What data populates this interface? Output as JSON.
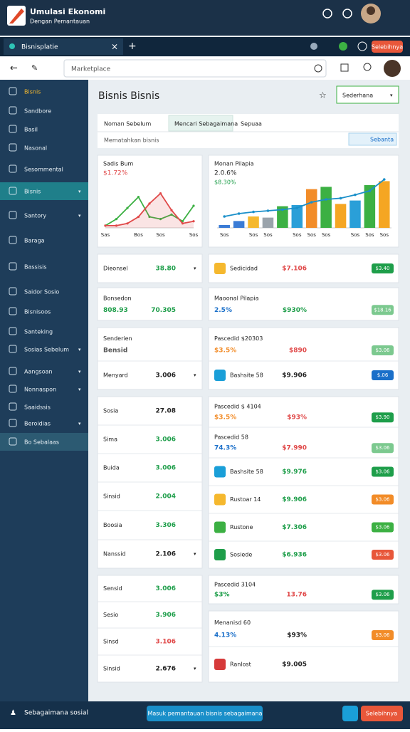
{
  "header": {
    "title": "Umulasi Ekonomi",
    "subtitle": "Dengan Pemantauan"
  },
  "tabbar": {
    "tab": "Bisnisplatie",
    "button": "Selebihnya"
  },
  "address": {
    "query": "Marketplace"
  },
  "sidebar": [
    "Bisnis",
    "Sandbore",
    "Basil",
    "Nasonal",
    "Sesommental",
    "Bisnis",
    "Santory",
    "Baraga",
    "Bassisis",
    "Saidor Sosio",
    "Bisnisoos",
    "Santeking",
    "Sosias Sebelum",
    "Aangsoan",
    "Nonnaspon",
    "Saaidssis",
    "Beroidias",
    "Bo Sebalaas"
  ],
  "page": {
    "title": "Bisnis Bisnis",
    "dropdown": "Sederhana",
    "tabs": [
      "Noman Sebelum",
      "Mencari Sebagaimana",
      "Sepuaa"
    ],
    "subtitle": "Mematahkan bisnis",
    "action": "Sebanta"
  },
  "chart_data": [
    {
      "type": "line",
      "title": "Sadis Bum",
      "subtitle": "$1.72%",
      "categories": [
        "Sas",
        null,
        null,
        "Bos",
        null,
        "Sos",
        null,
        null,
        "Sos"
      ],
      "ylim": [
        0,
        100
      ],
      "series": [
        {
          "color": "#3cb043",
          "values": [
            5,
            20,
            45,
            70,
            25,
            20,
            30,
            15,
            50
          ]
        },
        {
          "color": "#e04848",
          "values": [
            5,
            5,
            10,
            25,
            55,
            78,
            40,
            10,
            15
          ]
        }
      ]
    },
    {
      "type": "bar",
      "title": "Monan Pilapia",
      "subtitle": "2.0.6%",
      "note": "$8.30%",
      "categories": [
        "Sos",
        null,
        "Sos",
        "Sos",
        null,
        "Sos",
        "Sos",
        "Sos",
        null,
        "Sos",
        "Sos",
        "Sos"
      ],
      "ylim": [
        0,
        100
      ],
      "colors": [
        "#3a7bd5",
        "#3a7bd5",
        "#f5b82e",
        "#9aa3ab",
        "#3cb043",
        "#2a9fd8",
        "#f28c28",
        "#3cb043",
        "#f5a623",
        "#2a9fd8",
        "#3cb043",
        "#f5a623"
      ],
      "values": [
        5,
        12,
        20,
        18,
        38,
        40,
        68,
        72,
        42,
        48,
        75,
        82
      ],
      "line": {
        "color": "#1a8fc9",
        "values": [
          20,
          25,
          28,
          30,
          32,
          35,
          45,
          50,
          52,
          58,
          65,
          85
        ]
      }
    }
  ],
  "left_cards": [
    {
      "rows": [
        {
          "label": "Dieonsel",
          "value": "38.80",
          "value_color": "#1e9e4a"
        }
      ]
    },
    {
      "rows": [
        {
          "label": "Bonsedon",
          "sub": "808.93",
          "sub_color": "#1e9e4a",
          "value": "70.305",
          "value_color": "#1e9e4a"
        }
      ]
    },
    {
      "rows": [
        {
          "label": "Senderien",
          "sub": "Bensid",
          "sub_color": "#555555"
        },
        {
          "label": "Menyard",
          "value": "3.006",
          "value_color": "#222222"
        }
      ]
    },
    {
      "rows": [
        {
          "label": "Sosia",
          "value": "27.08",
          "value_color": "#222222"
        },
        {
          "label": "Sima",
          "value": "3.006",
          "value_color": "#1e9e4a"
        },
        {
          "label": "Buida",
          "value": "3.006",
          "value_color": "#1e9e4a"
        },
        {
          "label": "Sinsid",
          "value": "2.004",
          "value_color": "#1e9e4a"
        },
        {
          "label": "Boosia",
          "value": "3.306",
          "value_color": "#1e9e4a"
        },
        {
          "label": "Nanssid",
          "value": "2.106",
          "value_color": "#222222"
        }
      ]
    },
    {
      "rows": [
        {
          "label": "Sensid",
          "value": "3.006",
          "value_color": "#1e9e4a"
        },
        {
          "label": "Sesio",
          "value": "3.906",
          "value_color": "#1e9e4a"
        },
        {
          "label": "Sinsd",
          "value": "3.106",
          "value_color": "#e04848"
        },
        {
          "label": "Sinsid",
          "value": "2.676",
          "value_color": "#222222"
        }
      ]
    }
  ],
  "right_cards": [
    {
      "rows": [
        {
          "icon_color": "#f5b82e",
          "label": "Sedicidad",
          "value": "$7.106",
          "value_color": "#e04848",
          "badge": "$3.40",
          "badge_color": "#1e9e4a"
        }
      ]
    },
    {
      "rows": [
        {
          "label": "Maoonal Pilapia",
          "sub": "2.5%",
          "sub_color": "#1a6fc9",
          "value": "$930%",
          "value_color": "#1e9e4a",
          "badge": "$18.16",
          "badge_color": "#7cc98f"
        }
      ]
    },
    {
      "rows": [
        {
          "label": "Pascedid $20303",
          "sub": "$3.5%",
          "sub_color": "#f28c28",
          "value": "$890",
          "value_color": "#e04848",
          "badge": "$3.06",
          "badge_color": "#7cc98f"
        },
        {
          "icon_color": "#1a9fd8",
          "label": "Bashsite 58",
          "value": "$9.906",
          "value_color": "#222222",
          "badge": "$.06",
          "badge_color": "#1a6fc9"
        }
      ]
    },
    {
      "rows": [
        {
          "label": "Pascedid $ 4104",
          "sub": "$3.5%",
          "sub_color": "#f28c28",
          "value": "$93%",
          "value_color": "#e04848",
          "badge": "$3.90",
          "badge_color": "#1e9e4a"
        },
        {
          "label": "Pascedid 58",
          "sub": "74.3%",
          "sub_color": "#1a6fc9",
          "value": "$7.990",
          "value_color": "#e04848",
          "badge": "$3.06",
          "badge_color": "#7cc98f"
        },
        {
          "icon_color": "#1a9fd8",
          "label": "Bashsite 58",
          "value": "$9.976",
          "value_color": "#1e9e4a",
          "badge": "$3.06",
          "badge_color": "#1e9e4a"
        },
        {
          "icon_color": "#f5b82e",
          "label": "Rustoar 14",
          "value": "$9.906",
          "value_color": "#1e9e4a",
          "badge": "$3.06",
          "badge_color": "#f28c28"
        },
        {
          "icon_color": "#3cb043",
          "label": "Rustone",
          "value": "$7.306",
          "value_color": "#1e9e4a",
          "badge": "$3.06",
          "badge_color": "#3cb043"
        },
        {
          "icon_color": "#1e9e4a",
          "label": "Sosiede",
          "value": "$6.936",
          "value_color": "#1e9e4a",
          "badge": "$3.06",
          "badge_color": "#e8573a"
        }
      ]
    },
    {
      "rows": [
        {
          "label": "Pascedid 3104",
          "sub": "$3%",
          "sub_color": "#1e9e4a",
          "value": "13.76",
          "value_color": "#e04848",
          "badge": "$3.06",
          "badge_color": "#1e9e4a"
        }
      ]
    },
    {
      "rows": [
        {
          "label": "Menanisd 60",
          "sub": "4.13%",
          "sub_color": "#1a6fc9",
          "value": "$93%",
          "value_color": "#222222",
          "badge": "$3.06",
          "badge_color": "#f28c28"
        },
        {
          "icon_color": "#d63a3a",
          "label": "Ranlost",
          "value": "$9.005",
          "value_color": "#222222"
        }
      ]
    }
  ],
  "footer": {
    "left": "Sebagaimana sosial",
    "center": "Masuk pemantauan bisnis sebagaimana",
    "right": "Selebihnya"
  }
}
